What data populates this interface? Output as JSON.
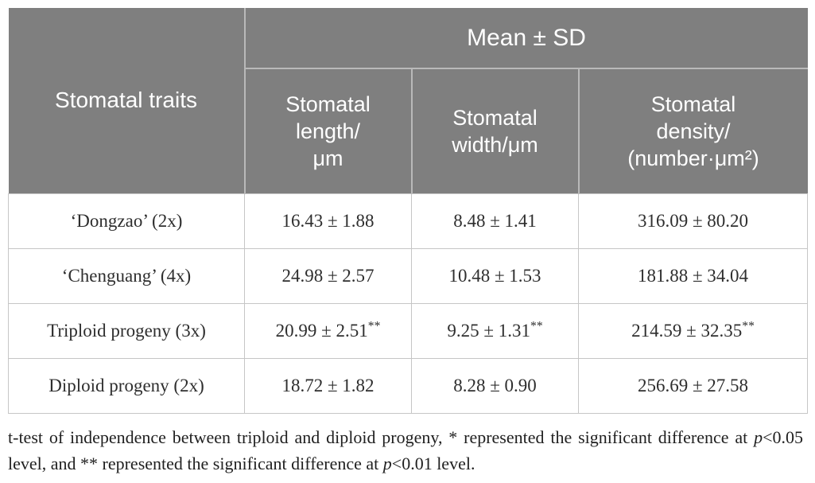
{
  "table": {
    "corner_header": "Stomatal traits",
    "group_header": "Mean ± SD",
    "sub_headers": [
      {
        "label": "Stomatal length/μm",
        "lines": [
          "Stomatal",
          "length/",
          "μm"
        ]
      },
      {
        "label": "Stomatal width/μm",
        "lines": [
          "Stomatal",
          "width/μm",
          ""
        ]
      },
      {
        "label": "Stomatal density/(number·μm²)",
        "lines": [
          "Stomatal",
          "density/",
          "(number·μm²)"
        ]
      }
    ],
    "rows": [
      {
        "trait": "‘Dongzao’ (2x)",
        "length": "16.43 ± 1.88",
        "length_sig": "",
        "width": "8.48 ± 1.41",
        "width_sig": "",
        "density": "316.09 ± 80.20",
        "density_sig": ""
      },
      {
        "trait": "‘Chenguang’ (4x)",
        "length": "24.98 ± 2.57",
        "length_sig": "",
        "width": "10.48 ± 1.53",
        "width_sig": "",
        "density": "181.88 ± 34.04",
        "density_sig": ""
      },
      {
        "trait": "Triploid progeny (3x)",
        "length": "20.99 ± 2.51",
        "length_sig": "**",
        "width": "9.25 ± 1.31",
        "width_sig": "**",
        "density": "214.59 ± 32.35",
        "density_sig": "**"
      },
      {
        "trait": "Diploid progeny (2x)",
        "length": "18.72 ± 1.82",
        "length_sig": "",
        "width": "8.28 ± 0.90",
        "width_sig": "",
        "density": "256.69 ± 27.58",
        "density_sig": ""
      }
    ]
  },
  "footnote": {
    "segments": [
      {
        "text": "t-test of independence between triploid and diploid progeny, * represented the significant difference at ",
        "italic": false
      },
      {
        "text": "p",
        "italic": true
      },
      {
        "text": "<0.05 level, and ** represented the significant difference at ",
        "italic": false
      },
      {
        "text": "p",
        "italic": true
      },
      {
        "text": "<0.01 level.",
        "italic": false
      }
    ]
  },
  "colors": {
    "header_bg": "#7f7f7f",
    "header_text": "#ffffff",
    "header_divider": "#b9b9b9",
    "body_border": "#c6c6c6",
    "body_text": "#2e2e2e"
  }
}
